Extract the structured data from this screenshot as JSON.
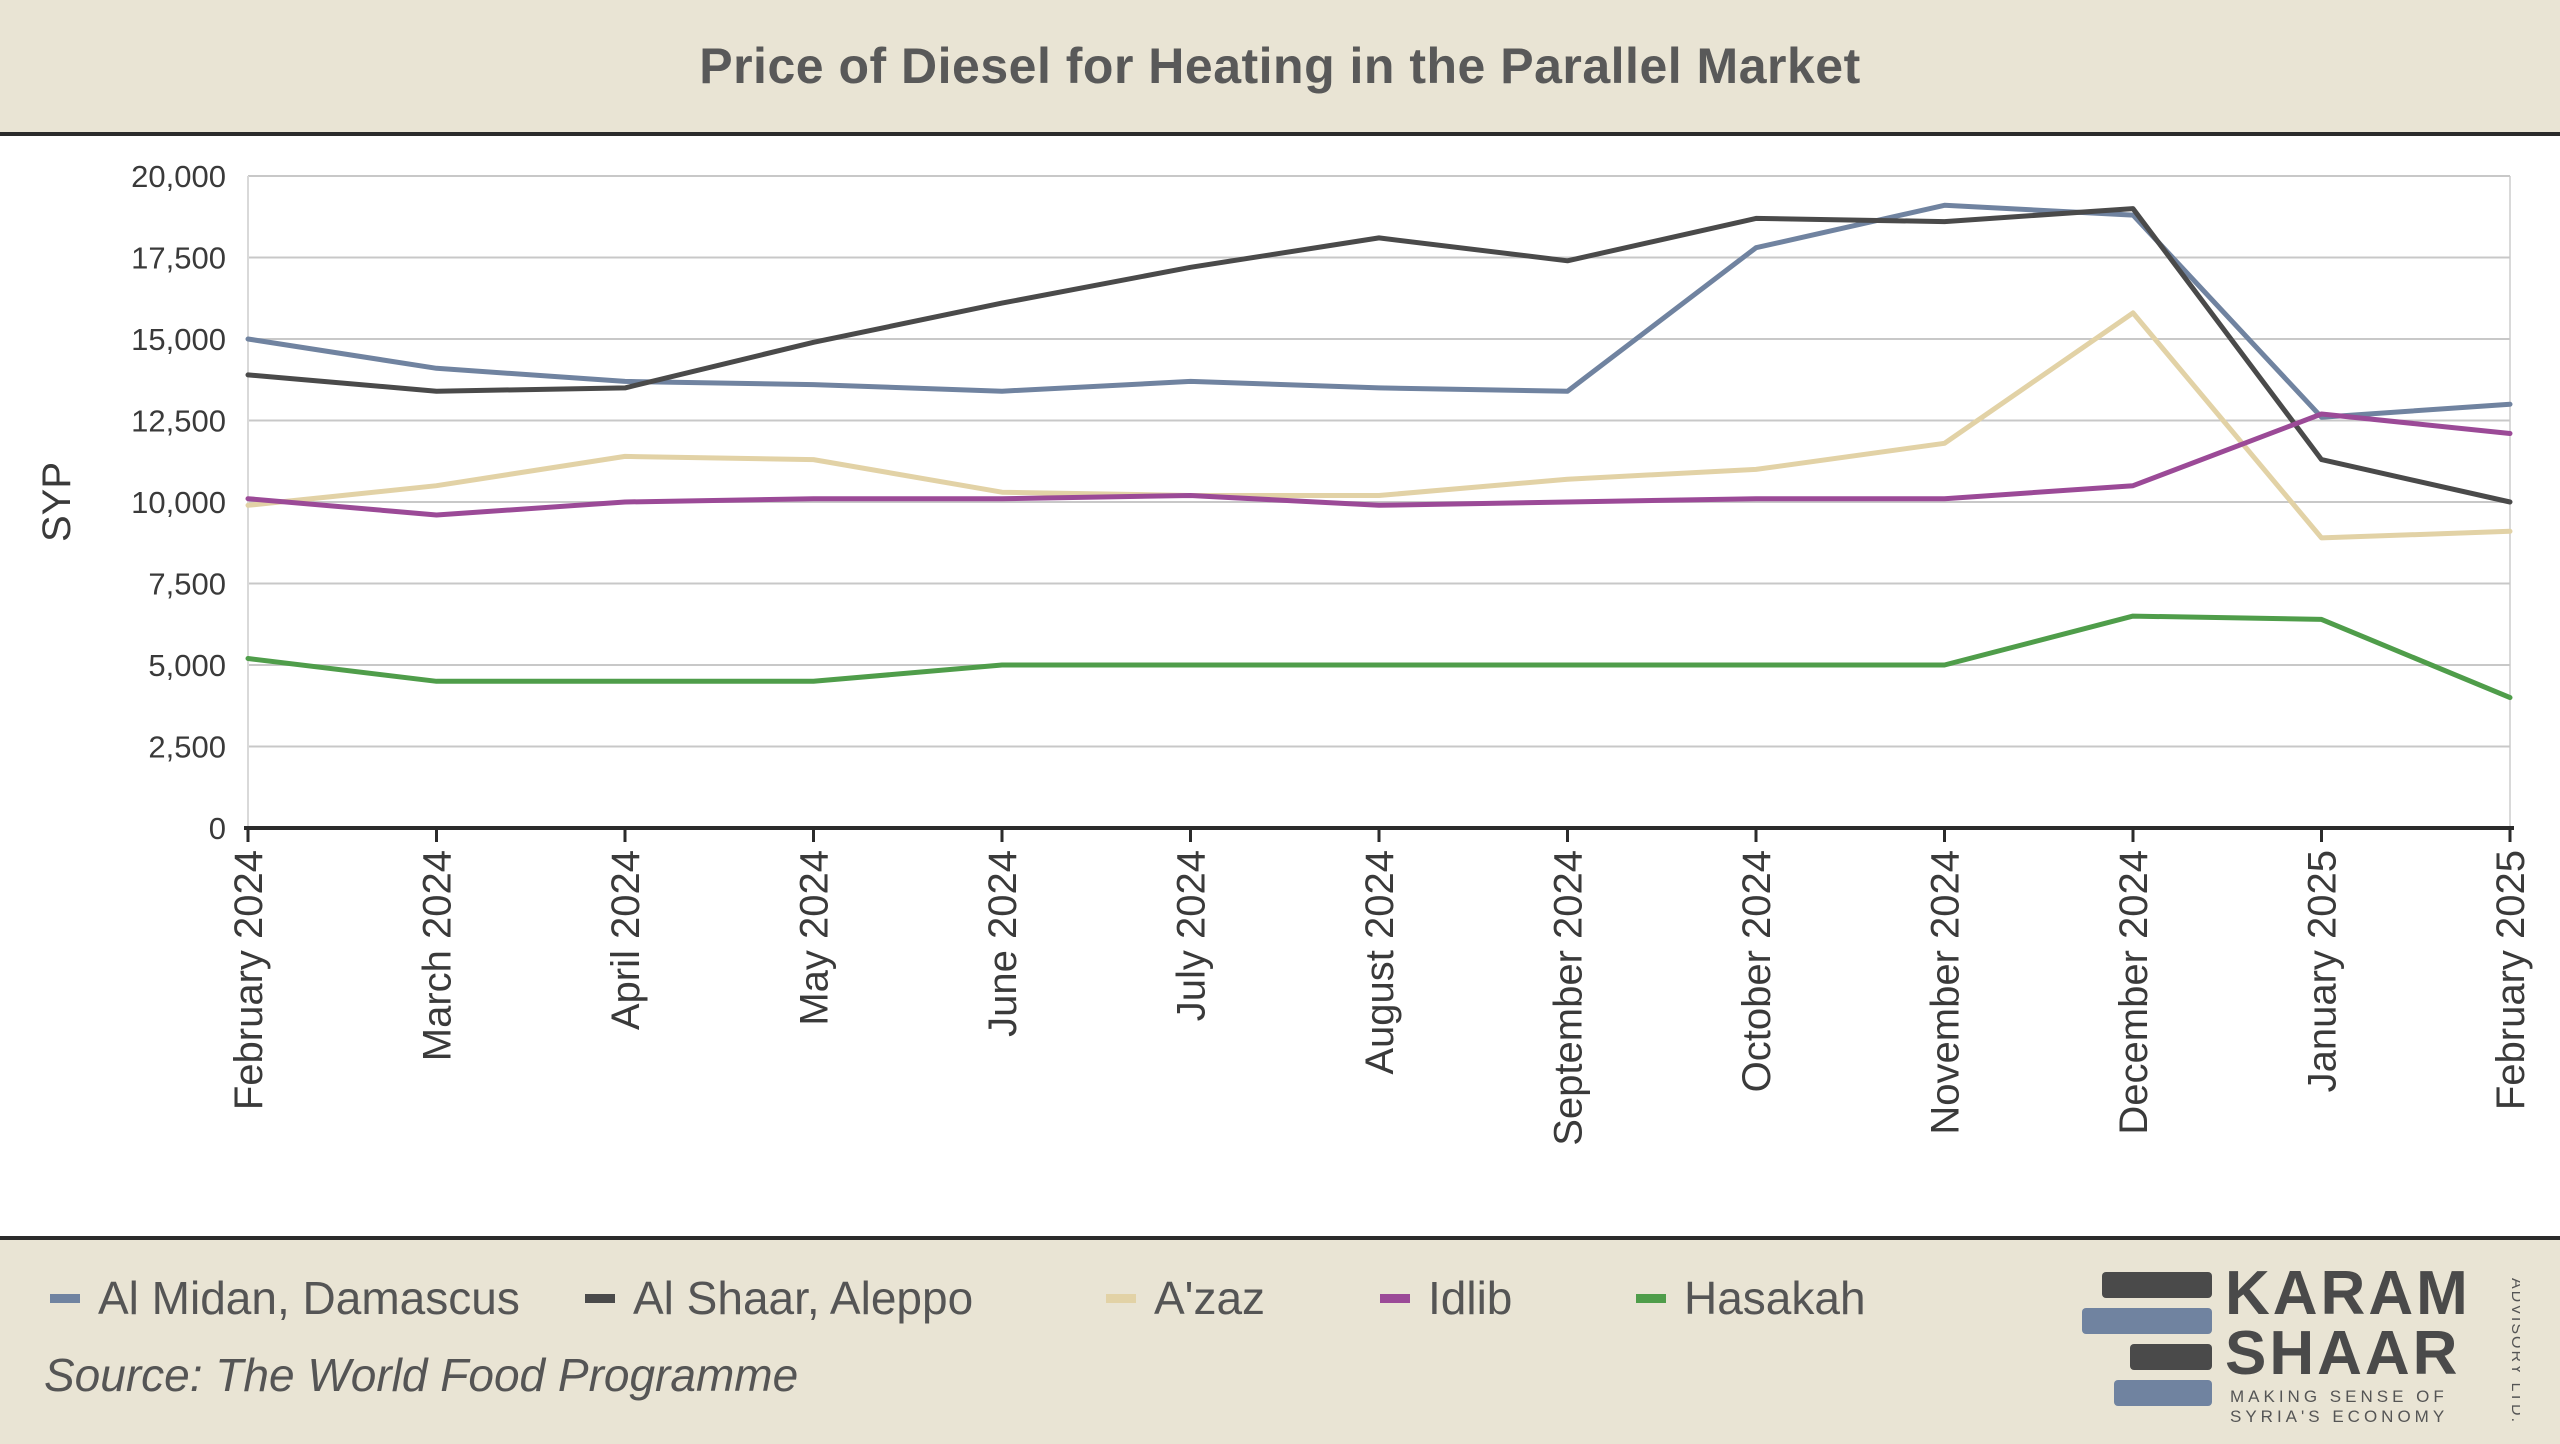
{
  "title": "Price of Diesel for Heating in the Parallel Market",
  "source": "Source: The World Food Programme",
  "logo": {
    "line1": "KARAM",
    "line2": "SHAAR",
    "tagline1": "MAKING SENSE OF",
    "tagline2": "SYRIA'S ECONOMY",
    "side": "ADVISORY LTD."
  },
  "colors": {
    "Al Midan, Damascus": "#7083a0",
    "Al Shaar, Aleppo": "#4a4a4a",
    "A'zaz": "#e2d2a6",
    "Idlib": "#9b4a97",
    "Hasakah": "#4f9d4a"
  },
  "chart_data": {
    "type": "line",
    "title": "Price of Diesel for Heating in the Parallel Market",
    "ylabel": "SYP",
    "xlabel": "",
    "ylim": [
      0,
      20000
    ],
    "yticks": [
      "0",
      "2,500",
      "5,000",
      "7,500",
      "10,000",
      "12,500",
      "15,000",
      "17,500",
      "20,000"
    ],
    "grid": true,
    "legend": "bottom",
    "categories": [
      "February 2024",
      "March 2024",
      "April 2024",
      "May 2024",
      "June 2024",
      "July 2024",
      "August 2024",
      "September 2024",
      "October 2024",
      "November 2024",
      "December 2024",
      "January 2025",
      "February 2025"
    ],
    "series": [
      {
        "name": "Al Midan, Damascus",
        "values": [
          15000,
          14100,
          13700,
          13600,
          13400,
          13700,
          13500,
          13400,
          17800,
          19100,
          18800,
          12600,
          13000
        ]
      },
      {
        "name": "Al Shaar, Aleppo",
        "values": [
          13900,
          13400,
          13500,
          14900,
          16100,
          17200,
          18100,
          17400,
          18700,
          18600,
          19000,
          11300,
          10000
        ]
      },
      {
        "name": "A'zaz",
        "values": [
          9900,
          10500,
          11400,
          11300,
          10300,
          10200,
          10200,
          10700,
          11000,
          11800,
          15800,
          8900,
          9100
        ]
      },
      {
        "name": "Idlib",
        "values": [
          10100,
          9600,
          10000,
          10100,
          10100,
          10200,
          9900,
          10000,
          10100,
          10100,
          10500,
          12700,
          12100
        ]
      },
      {
        "name": "Hasakah",
        "values": [
          5200,
          4500,
          4500,
          4500,
          5000,
          5000,
          5000,
          5000,
          5000,
          5000,
          6500,
          6400,
          4000
        ]
      }
    ]
  }
}
